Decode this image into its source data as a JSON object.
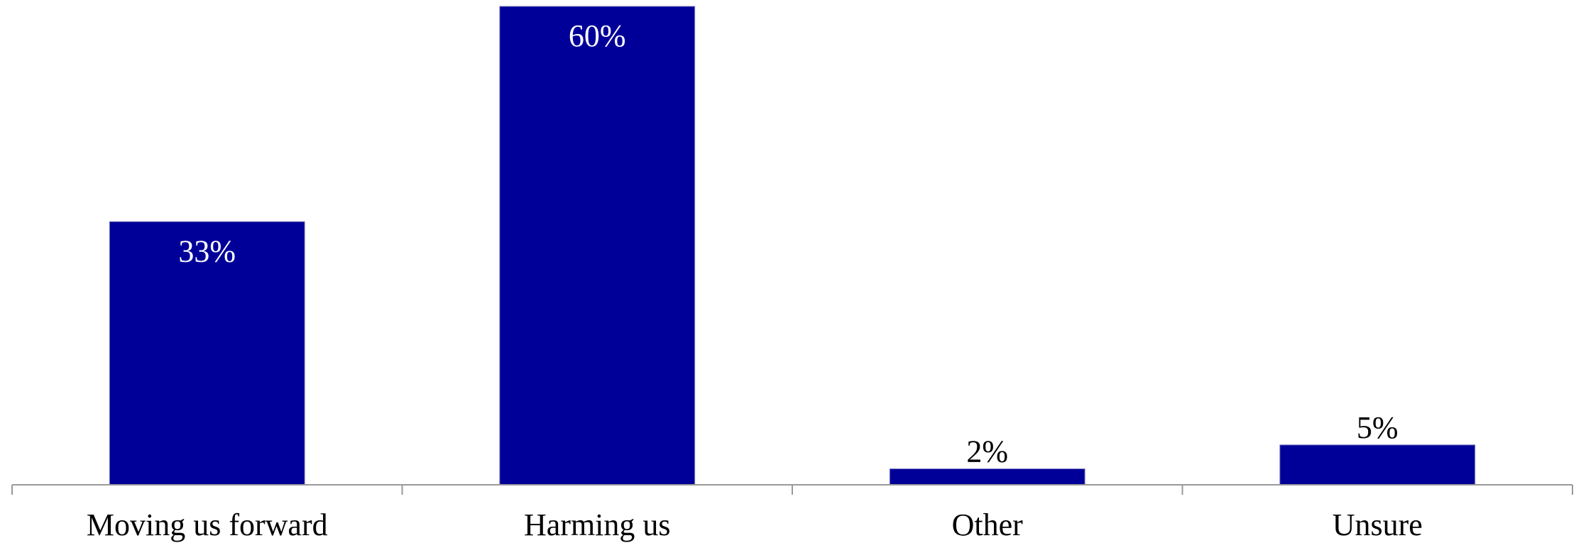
{
  "chart_data": {
    "type": "bar",
    "title": "",
    "xlabel": "",
    "ylabel": "",
    "categories": [
      "Moving us forward",
      "Harming us",
      "Other",
      "Unsure"
    ],
    "values": [
      33,
      60,
      2,
      5
    ],
    "value_labels": [
      "33%",
      "60%",
      "2%",
      "5%"
    ],
    "unit": "%",
    "ylim": [
      0,
      60
    ],
    "grid": false,
    "legend": "none",
    "bar_color": "#000099",
    "axis_color": "#999999",
    "label_color_inside": "#ffffff",
    "label_color_outside": "#000000"
  }
}
